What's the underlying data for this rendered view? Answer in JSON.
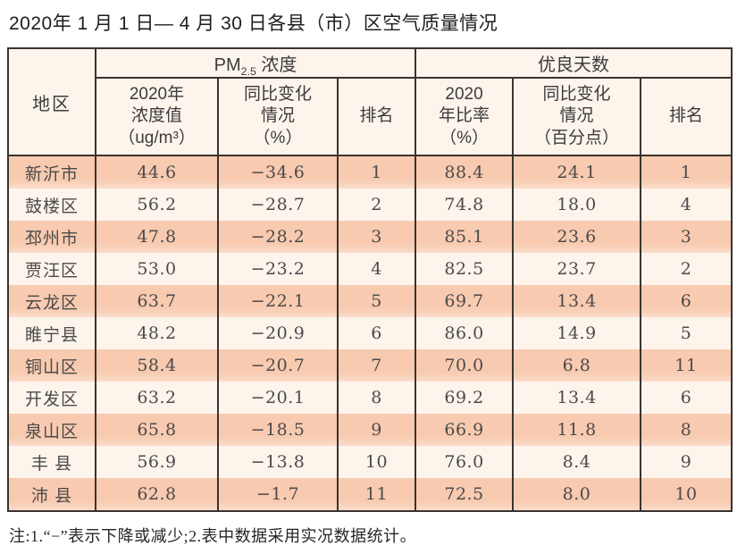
{
  "title": "2020年 1 月 1 日— 4 月 30 日各县（市）区空气质量情况",
  "note": "注:1.“−”表示下降或减少;2.表中数据采用实况数据统计。",
  "colors": {
    "row_pink": "#f8cab0",
    "row_pink_fade": "#fadcca",
    "row_light": "#fdf4ec",
    "header_bg": "#fdf4ec",
    "border": "#3a332f"
  },
  "table": {
    "region_header": "地区",
    "pm_group": {
      "prefix": "PM",
      "sub": "2.5",
      "suffix": " 浓度"
    },
    "good_group": "优良天数",
    "sub_headers": [
      "2020年\n浓度值\n（ug/m³）",
      "同比变化\n情况\n（%）",
      "排名",
      "2020\n年比率\n（%）",
      "同比变化\n情况\n（百分点）",
      "排名"
    ],
    "rows": [
      {
        "region": "新沂市",
        "pm_value": "44.6",
        "pm_change": "−34.6",
        "pm_rank": "1",
        "good_rate": "88.4",
        "good_change": "24.1",
        "good_rank": "1"
      },
      {
        "region": "鼓楼区",
        "pm_value": "56.2",
        "pm_change": "−28.7",
        "pm_rank": "2",
        "good_rate": "74.8",
        "good_change": "18.0",
        "good_rank": "4"
      },
      {
        "region": "邳州市",
        "pm_value": "47.8",
        "pm_change": "−28.2",
        "pm_rank": "3",
        "good_rate": "85.1",
        "good_change": "23.6",
        "good_rank": "3"
      },
      {
        "region": "贾汪区",
        "pm_value": "53.0",
        "pm_change": "−23.2",
        "pm_rank": "4",
        "good_rate": "82.5",
        "good_change": "23.7",
        "good_rank": "2"
      },
      {
        "region": "云龙区",
        "pm_value": "63.7",
        "pm_change": "−22.1",
        "pm_rank": "5",
        "good_rate": "69.7",
        "good_change": "13.4",
        "good_rank": "6"
      },
      {
        "region": "睢宁县",
        "pm_value": "48.2",
        "pm_change": "−20.9",
        "pm_rank": "6",
        "good_rate": "86.0",
        "good_change": "14.9",
        "good_rank": "5"
      },
      {
        "region": "铜山区",
        "pm_value": "58.4",
        "pm_change": "−20.7",
        "pm_rank": "7",
        "good_rate": "70.0",
        "good_change": "6.8",
        "good_rank": "11"
      },
      {
        "region": "开发区",
        "pm_value": "63.2",
        "pm_change": "−20.1",
        "pm_rank": "8",
        "good_rate": "69.2",
        "good_change": "13.4",
        "good_rank": "6"
      },
      {
        "region": "泉山区",
        "pm_value": "65.8",
        "pm_change": "−18.5",
        "pm_rank": "9",
        "good_rate": "66.9",
        "good_change": "11.8",
        "good_rank": "8"
      },
      {
        "region": "丰 县",
        "pm_value": "56.9",
        "pm_change": "−13.8",
        "pm_rank": "10",
        "good_rate": "76.0",
        "good_change": "8.4",
        "good_rank": "9"
      },
      {
        "region": "沛 县",
        "pm_value": "62.8",
        "pm_change": "−1.7",
        "pm_rank": "11",
        "good_rate": "72.5",
        "good_change": "8.0",
        "good_rank": "10"
      }
    ]
  }
}
